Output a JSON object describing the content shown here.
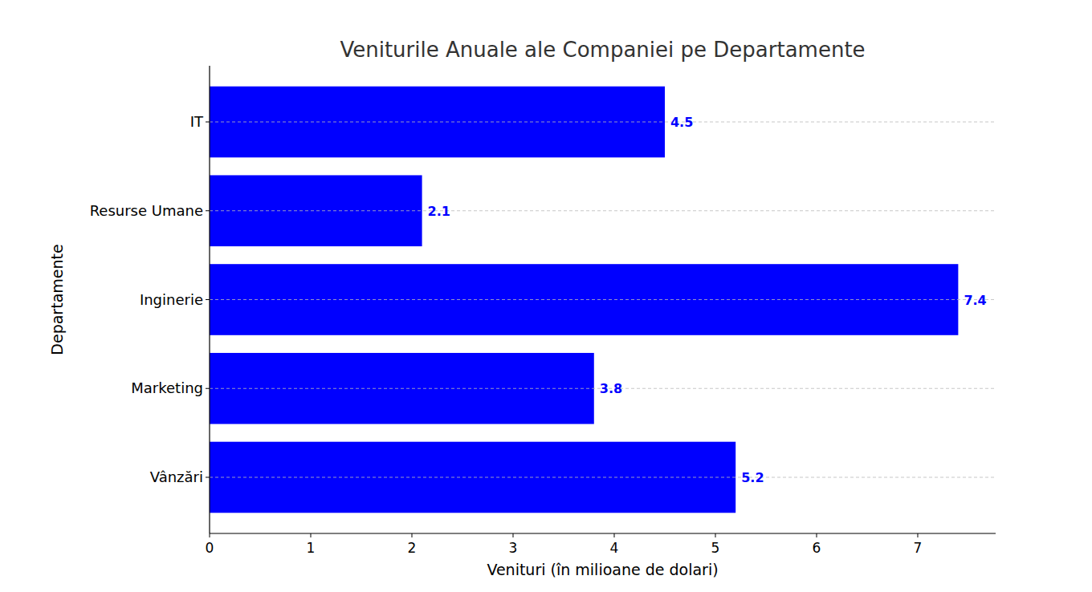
{
  "chart_data": {
    "type": "bar",
    "orientation": "horizontal",
    "title": "Veniturile Anuale ale Companiei pe Departamente",
    "x_label": "Venituri (în milioane de dolari)",
    "y_label": "Departamente",
    "categories": [
      "Vânzări",
      "Marketing",
      "Inginerie",
      "Resurse Umane",
      "IT"
    ],
    "values": [
      5.2,
      3.8,
      7.4,
      2.1,
      4.5
    ],
    "color": "#0000ff",
    "xlim": [
      0,
      7.77
    ],
    "xticks": [
      0,
      1,
      2,
      3,
      4,
      5,
      6,
      7
    ],
    "grid": true,
    "data_labels": true
  }
}
